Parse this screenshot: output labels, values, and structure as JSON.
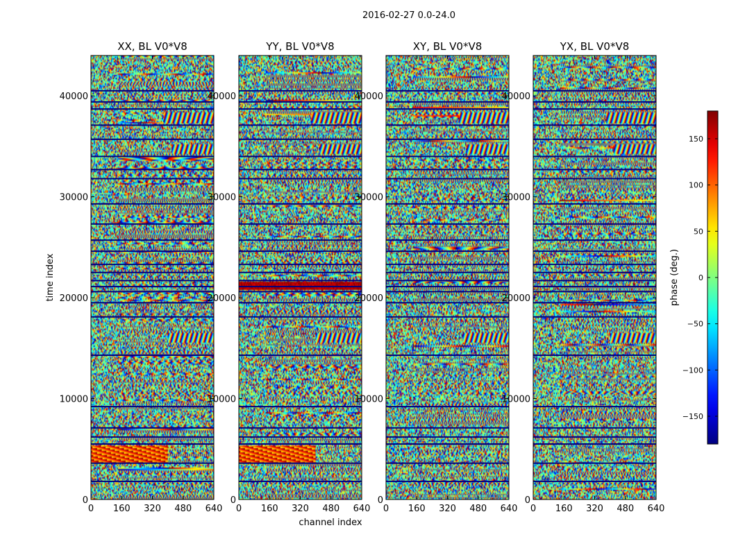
{
  "figure_title": "2016-02-27 0.0-24.0",
  "chart_data": {
    "type": "heatmap",
    "suptitle": "2016-02-27 0.0-24.0",
    "xlabel": "channel index",
    "ylabel": "time index",
    "xlim": [
      0,
      640
    ],
    "ylim": [
      0,
      44000
    ],
    "xticks": [
      0,
      160,
      320,
      480,
      640
    ],
    "yticks": [
      0,
      10000,
      20000,
      30000,
      40000
    ],
    "value_range": [
      -180,
      180
    ],
    "colormap": "jet",
    "colorbar": {
      "label": "phase (deg.)",
      "ticks": [
        150,
        100,
        50,
        0,
        -50,
        -100,
        -150
      ],
      "tick_labels": [
        "150",
        "100",
        "50",
        "0",
        "−50",
        "−100",
        "−150"
      ],
      "range": [
        -180,
        180
      ]
    },
    "panels": [
      {
        "title": "XX, BL V0*V8",
        "polarization": "XX"
      },
      {
        "title": "YY, BL V0*V8",
        "polarization": "YY"
      },
      {
        "title": "XY, BL V0*V8",
        "polarization": "XY"
      },
      {
        "title": "YX, BL V0*V8",
        "polarization": "YX"
      }
    ],
    "flagged_time_rows": [
      1800,
      3600,
      5500,
      6200,
      7100,
      9200,
      14300,
      18100,
      19500,
      20600,
      21100,
      21700,
      22500,
      23300,
      24600,
      25700,
      27300,
      29300,
      31800,
      32700,
      34000,
      35700,
      37100,
      38700,
      39400,
      40500
    ],
    "fringe_events": [
      {
        "time": 16000,
        "channel_start": 400,
        "channel_end": 640
      },
      {
        "time": 34700,
        "channel_start": 420,
        "channel_end": 640
      },
      {
        "time": 37800,
        "channel_start": 380,
        "channel_end": 640
      }
    ]
  }
}
